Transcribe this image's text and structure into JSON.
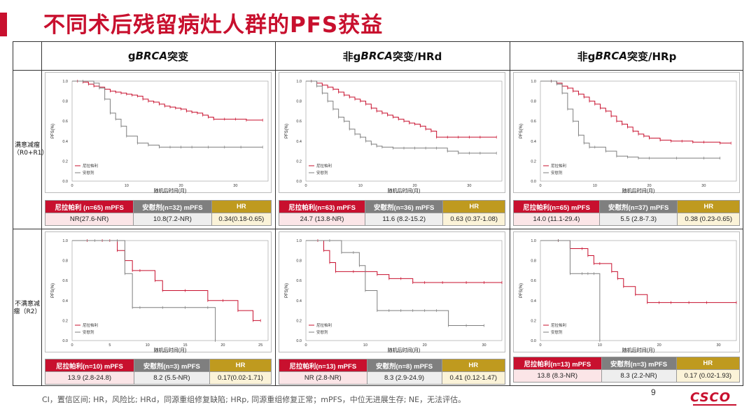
{
  "title": "不同术后残留病灶人群的PFS获益",
  "columns": [
    {
      "pre": "g",
      "gene": "BRCA",
      "post": "突变"
    },
    {
      "pre": "非g",
      "gene": "BRCA",
      "post": "突变/HRd"
    },
    {
      "pre": "非g",
      "gene": "BRCA",
      "post": "突变/HRp"
    }
  ],
  "rows": [
    {
      "label_lines": [
        "满意减瘤",
        "（R0+R1）"
      ]
    },
    {
      "label_lines": [
        "不满意减",
        "瘤（R2）"
      ]
    }
  ],
  "colors": {
    "accent": "#c8102e",
    "drug": "#c8102e",
    "placebo": "#7f7f7f",
    "hr": "#bf9a1f"
  },
  "footnote": "CI，置信区间; HR，风险比; HRd，同源重组修复缺陷; HRp, 同源重组修复正常；mPFS，中位无进展生存; NE，无法评估。",
  "page_number": "9",
  "logo": "CSCO",
  "chart_data": [
    {
      "type": "line",
      "panel": "R0R1-gBRCA",
      "xlabel": "随机后时间(月)",
      "ylabel": "PFS(%)",
      "xlim": [
        0,
        36
      ],
      "ylim": [
        0,
        1.0
      ],
      "xticks": [
        "0",
        "10",
        "20",
        "30"
      ],
      "yticks": [
        "0.0",
        "0.2",
        "0.4",
        "0.6",
        "0.8",
        "1.0"
      ],
      "legend": [
        "尼拉帕利",
        "安慰剂"
      ],
      "legend_position": "bottom-left",
      "series": [
        {
          "name": "尼拉帕利",
          "x": [
            0,
            1,
            2,
            3,
            4,
            5,
            6,
            7,
            8,
            9,
            10,
            11,
            12,
            13,
            14,
            15,
            16,
            17,
            18,
            19,
            20,
            21,
            22,
            23,
            24,
            25,
            26,
            28,
            30,
            32,
            35
          ],
          "y": [
            1.0,
            1.0,
            0.99,
            0.97,
            0.95,
            0.94,
            0.92,
            0.9,
            0.89,
            0.88,
            0.87,
            0.86,
            0.85,
            0.82,
            0.8,
            0.79,
            0.77,
            0.75,
            0.74,
            0.73,
            0.72,
            0.7,
            0.69,
            0.68,
            0.66,
            0.64,
            0.62,
            0.62,
            0.62,
            0.61,
            0.61
          ]
        },
        {
          "name": "安慰剂",
          "x": [
            0,
            2,
            4,
            5,
            6,
            7,
            8,
            9,
            10,
            12,
            14,
            16,
            18,
            20,
            22,
            25,
            28,
            31,
            35
          ],
          "y": [
            1.0,
            1.0,
            0.98,
            0.93,
            0.82,
            0.68,
            0.62,
            0.55,
            0.45,
            0.38,
            0.36,
            0.34,
            0.34,
            0.34,
            0.34,
            0.34,
            0.34,
            0.34,
            0.34
          ]
        }
      ]
    },
    {
      "type": "line",
      "panel": "R0R1-HRd",
      "xlabel": "随机后时间(月)",
      "ylabel": "PFS(%)",
      "xlim": [
        0,
        36
      ],
      "ylim": [
        0,
        1.0
      ],
      "xticks": [
        "0",
        "10",
        "20",
        "30"
      ],
      "yticks": [
        "0.0",
        "0.2",
        "0.4",
        "0.6",
        "0.8",
        "1.0"
      ],
      "legend": [
        "尼拉帕利",
        "安慰剂"
      ],
      "legend_position": "bottom-left",
      "series": [
        {
          "name": "尼拉帕利",
          "x": [
            0,
            1,
            2,
            3,
            4,
            5,
            6,
            7,
            8,
            9,
            10,
            11,
            12,
            13,
            14,
            15,
            16,
            17,
            18,
            19,
            20,
            21,
            22,
            23,
            24,
            26,
            28,
            30,
            32,
            35
          ],
          "y": [
            1.0,
            1.0,
            0.98,
            0.96,
            0.94,
            0.92,
            0.89,
            0.86,
            0.84,
            0.82,
            0.8,
            0.77,
            0.73,
            0.7,
            0.68,
            0.66,
            0.64,
            0.62,
            0.6,
            0.58,
            0.57,
            0.55,
            0.52,
            0.5,
            0.44,
            0.44,
            0.44,
            0.44,
            0.44,
            0.44
          ]
        },
        {
          "name": "安慰剂",
          "x": [
            0,
            1,
            2,
            3,
            4,
            5,
            6,
            7,
            8,
            9,
            10,
            11,
            12,
            13,
            14,
            16,
            18,
            20,
            22,
            24,
            26,
            28,
            30,
            32,
            35
          ],
          "y": [
            1.0,
            1.0,
            0.95,
            0.88,
            0.8,
            0.72,
            0.64,
            0.6,
            0.52,
            0.47,
            0.44,
            0.4,
            0.37,
            0.35,
            0.34,
            0.33,
            0.33,
            0.33,
            0.33,
            0.33,
            0.3,
            0.28,
            0.28,
            0.28,
            0.28
          ]
        }
      ]
    },
    {
      "type": "line",
      "panel": "R0R1-HRp",
      "xlabel": "随机后时间(月)",
      "ylabel": "PFS(%)",
      "xlim": [
        0,
        36
      ],
      "ylim": [
        0,
        1.0
      ],
      "xticks": [
        "0",
        "10",
        "20",
        "30"
      ],
      "yticks": [
        "0.0",
        "0.2",
        "0.4",
        "0.6",
        "0.8",
        "1.0"
      ],
      "legend": [
        "尼拉帕利",
        "安慰剂"
      ],
      "legend_position": "bottom-left",
      "series": [
        {
          "name": "尼拉帕利",
          "x": [
            0,
            2,
            3,
            4,
            5,
            6,
            7,
            8,
            9,
            10,
            11,
            12,
            13,
            14,
            15,
            16,
            17,
            18,
            19,
            20,
            22,
            24,
            26,
            28,
            30,
            33,
            35
          ],
          "y": [
            1.0,
            1.0,
            0.98,
            0.95,
            0.93,
            0.9,
            0.87,
            0.84,
            0.8,
            0.77,
            0.73,
            0.7,
            0.65,
            0.6,
            0.57,
            0.54,
            0.5,
            0.47,
            0.45,
            0.43,
            0.41,
            0.4,
            0.4,
            0.39,
            0.39,
            0.38,
            0.38
          ]
        },
        {
          "name": "安慰剂",
          "x": [
            0,
            2,
            3,
            4,
            5,
            6,
            7,
            8,
            9,
            10,
            12,
            14,
            16,
            18,
            20,
            25,
            30,
            33
          ],
          "y": [
            1.0,
            1.0,
            0.97,
            0.88,
            0.72,
            0.6,
            0.46,
            0.38,
            0.34,
            0.34,
            0.3,
            0.25,
            0.24,
            0.23,
            0.23,
            0.23,
            0.23,
            0.23
          ]
        }
      ]
    },
    {
      "type": "line",
      "panel": "R2-gBRCA",
      "xlabel": "随机后时间(月)",
      "ylabel": "PFS(%)",
      "xlim": [
        0,
        26
      ],
      "ylim": [
        0,
        1.0
      ],
      "xticks": [
        "0",
        "5",
        "10",
        "15",
        "20",
        "25"
      ],
      "yticks": [
        "0.0",
        "0.2",
        "0.4",
        "0.6",
        "0.8",
        "1.0"
      ],
      "legend": [
        "尼拉帕利",
        "安慰剂"
      ],
      "legend_position": "bottom-left",
      "series": [
        {
          "name": "尼拉帕利",
          "x": [
            0,
            2,
            4,
            5,
            6,
            7,
            8,
            9,
            11,
            12,
            15,
            18,
            20,
            22,
            24,
            25
          ],
          "y": [
            1.0,
            1.0,
            1.0,
            1.0,
            0.9,
            0.8,
            0.7,
            0.7,
            0.6,
            0.5,
            0.5,
            0.4,
            0.4,
            0.3,
            0.2,
            0.2
          ]
        },
        {
          "name": "安慰剂",
          "x": [
            0,
            3,
            6,
            7,
            8,
            9,
            12,
            15,
            18,
            19
          ],
          "y": [
            1.0,
            1.0,
            1.0,
            0.67,
            0.33,
            0.33,
            0.33,
            0.33,
            0.33,
            0.0
          ]
        }
      ]
    },
    {
      "type": "line",
      "panel": "R2-HRd",
      "xlabel": "随机后时间(月)",
      "ylabel": "PFS(%)",
      "xlim": [
        0,
        33
      ],
      "ylim": [
        0,
        1.0
      ],
      "xticks": [
        "0",
        "10",
        "20",
        "30"
      ],
      "yticks": [
        "0.0",
        "0.2",
        "0.4",
        "0.6",
        "0.8",
        "1.0"
      ],
      "legend": [
        "尼拉帕利",
        "安慰剂"
      ],
      "legend_position": "bottom-left",
      "series": [
        {
          "name": "尼拉帕利",
          "x": [
            0,
            2,
            3,
            4,
            5,
            8,
            10,
            12,
            14,
            16,
            18,
            20,
            23,
            27,
            30,
            33
          ],
          "y": [
            1.0,
            1.0,
            0.9,
            0.78,
            0.69,
            0.69,
            0.69,
            0.66,
            0.62,
            0.62,
            0.58,
            0.58,
            0.58,
            0.58,
            0.58,
            0.58
          ]
        },
        {
          "name": "安慰剂",
          "x": [
            0,
            4,
            6,
            8,
            9,
            10,
            12,
            14,
            16,
            18,
            20,
            22,
            24,
            27,
            30
          ],
          "y": [
            1.0,
            1.0,
            0.88,
            0.88,
            0.75,
            0.5,
            0.3,
            0.3,
            0.3,
            0.3,
            0.3,
            0.3,
            0.15,
            0.15,
            0.15
          ]
        }
      ]
    },
    {
      "type": "line",
      "panel": "R2-HRp",
      "xlabel": "随机后时间(月)",
      "ylabel": "PFS(%)",
      "xlim": [
        0,
        33
      ],
      "ylim": [
        0,
        1.0
      ],
      "xticks": [
        "0",
        "10",
        "20",
        "30"
      ],
      "yticks": [
        "0.0",
        "0.2",
        "0.4",
        "0.6",
        "0.8",
        "1.0"
      ],
      "legend": [
        "尼拉帕利",
        "安慰剂"
      ],
      "legend_position": "bottom-left",
      "series": [
        {
          "name": "尼拉帕利",
          "x": [
            0,
            3,
            5,
            7,
            8,
            9,
            10,
            12,
            13,
            14,
            16,
            18,
            20,
            22,
            25,
            28,
            33
          ],
          "y": [
            1.0,
            1.0,
            0.92,
            0.92,
            0.85,
            0.77,
            0.77,
            0.69,
            0.62,
            0.54,
            0.46,
            0.38,
            0.38,
            0.38,
            0.38,
            0.38,
            0.38
          ]
        },
        {
          "name": "安慰剂",
          "x": [
            0,
            3,
            5,
            7,
            8,
            9,
            10
          ],
          "y": [
            1.0,
            1.0,
            0.67,
            0.67,
            0.67,
            0.67,
            0.0
          ]
        }
      ]
    }
  ],
  "tables": [
    {
      "h": [
        "尼拉帕利 (n=65) mPFS",
        "安慰剂(n=32) mPFS",
        "HR"
      ],
      "v": [
        "NR(27.6-NR)",
        "10.8(7.2-NR)",
        "0.34(0.18-0.65)"
      ]
    },
    {
      "h": [
        "尼拉帕利(n=63) mPFS",
        "安慰剂(n=36) mPFS",
        "HR"
      ],
      "v": [
        "24.7 (13.8-NR)",
        "11.6 (8.2-15.2)",
        "0.63 (0.37-1.08)"
      ]
    },
    {
      "h": [
        "尼拉帕利(n=65) mPFS",
        "安慰剂(n=37) mPFS",
        "HR"
      ],
      "v": [
        "14.0 (11.1-29.4)",
        "5.5 (2.8-7.3)",
        "0.38 (0.23-0.65)"
      ]
    },
    {
      "h": [
        "尼拉帕利(n=10) mPFS",
        "安慰剂(n=3) mPFS",
        "HR"
      ],
      "v": [
        "13.9 (2.8-24.8)",
        "8.2 (5.5-NR)",
        "0.17(0.02-1.71)"
      ]
    },
    {
      "h": [
        "尼拉帕利(n=13) mPFS",
        "安慰剂(n=8) mPFS",
        "HR"
      ],
      "v": [
        "NR (2.8-NR)",
        "8.3 (2.9-24.9)",
        "0.41 (0.12-1.47)"
      ]
    },
    {
      "h": [
        "尼拉帕利(n=13) mPFS",
        "安慰剂(n=3) mPFS",
        "HR"
      ],
      "v": [
        "13.8 (8.3-NR)",
        "8.3 (2.2-NR)",
        "0.17 (0.02-1.93)"
      ]
    }
  ]
}
